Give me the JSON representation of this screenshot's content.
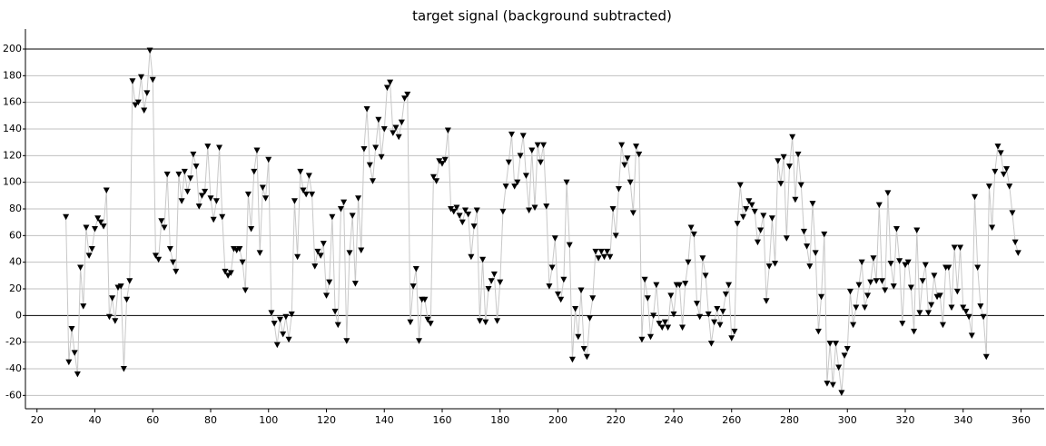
{
  "chart_data": {
    "type": "line",
    "title": "target signal (background subtracted)",
    "x": [
      30,
      31,
      32,
      33,
      34,
      35,
      36,
      37,
      38,
      39,
      40,
      41,
      42,
      43,
      44,
      45,
      46,
      47,
      48,
      49,
      50,
      51,
      52,
      53,
      54,
      55,
      56,
      57,
      58,
      59,
      60,
      61,
      62,
      63,
      64,
      65,
      66,
      67,
      68,
      69,
      70,
      71,
      72,
      73,
      74,
      75,
      76,
      77,
      78,
      79,
      80,
      81,
      82,
      83,
      84,
      85,
      86,
      87,
      88,
      89,
      90,
      91,
      92,
      93,
      94,
      95,
      96,
      97,
      98,
      99,
      100,
      101,
      102,
      103,
      104,
      105,
      106,
      107,
      108,
      109,
      110,
      111,
      112,
      113,
      114,
      115,
      116,
      117,
      118,
      119,
      120,
      121,
      122,
      123,
      124,
      125,
      126,
      127,
      128,
      129,
      130,
      131,
      132,
      133,
      134,
      135,
      136,
      137,
      138,
      139,
      140,
      141,
      142,
      143,
      144,
      145,
      146,
      147,
      148,
      149,
      150,
      151,
      152,
      153,
      154,
      155,
      156,
      157,
      158,
      159,
      160,
      161,
      162,
      163,
      164,
      165,
      166,
      167,
      168,
      169,
      170,
      171,
      172,
      173,
      174,
      175,
      176,
      177,
      178,
      179,
      180,
      181,
      182,
      183,
      184,
      185,
      186,
      187,
      188,
      189,
      190,
      191,
      192,
      193,
      194,
      195,
      196,
      197,
      198,
      199,
      200,
      201,
      202,
      203,
      204,
      205,
      206,
      207,
      208,
      209,
      210,
      211,
      212,
      213,
      214,
      215,
      216,
      217,
      218,
      219,
      220,
      221,
      222,
      223,
      224,
      225,
      226,
      227,
      228,
      229,
      230,
      231,
      232,
      233,
      234,
      235,
      236,
      237,
      238,
      239,
      240,
      241,
      242,
      243,
      244,
      245,
      246,
      247,
      248,
      249,
      250,
      251,
      252,
      253,
      254,
      255,
      256,
      257,
      258,
      259,
      260,
      261,
      262,
      263,
      264,
      265,
      266,
      267,
      268,
      269,
      270,
      271,
      272,
      273,
      274,
      275,
      276,
      277,
      278,
      279,
      280,
      281,
      282,
      283,
      284,
      285,
      286,
      287,
      288,
      289,
      290,
      291,
      292,
      293,
      294,
      295,
      296,
      297,
      298,
      299,
      300,
      301,
      302,
      303,
      304,
      305,
      306,
      307,
      308,
      309,
      310,
      311,
      312,
      313,
      314,
      315,
      316,
      317,
      318,
      319,
      320,
      321,
      322,
      323,
      324,
      325,
      326,
      327,
      328,
      329,
      330,
      331,
      332,
      333,
      334,
      335,
      336,
      337,
      338,
      339,
      340,
      341,
      342,
      343,
      344,
      345,
      346,
      347,
      348,
      349,
      350,
      351,
      352,
      353,
      354,
      355,
      356,
      357,
      358,
      359
    ],
    "values": [
      74,
      -35,
      -10,
      -28,
      -44,
      36,
      7,
      66,
      45,
      50,
      65,
      73,
      70,
      67,
      94,
      -1,
      13,
      -4,
      21,
      22,
      -40,
      12,
      26,
      176,
      158,
      160,
      179,
      154,
      167,
      199,
      177,
      45,
      42,
      71,
      66,
      106,
      50,
      40,
      33,
      106,
      86,
      108,
      93,
      103,
      121,
      112,
      82,
      90,
      93,
      127,
      88,
      72,
      86,
      126,
      74,
      33,
      30,
      32,
      50,
      49,
      50,
      40,
      19,
      91,
      65,
      108,
      124,
      47,
      96,
      88,
      117,
      2,
      -6,
      -22,
      -3,
      -14,
      -1,
      -18,
      1,
      86,
      44,
      108,
      94,
      91,
      105,
      91,
      37,
      48,
      45,
      54,
      15,
      25,
      74,
      3,
      -7,
      80,
      85,
      -19,
      47,
      75,
      24,
      88,
      49,
      125,
      155,
      113,
      101,
      126,
      147,
      119,
      140,
      171,
      175,
      137,
      141,
      134,
      145,
      163,
      166,
      -5,
      22,
      35,
      -19,
      12,
      12,
      -3,
      -6,
      104,
      101,
      116,
      114,
      117,
      139,
      80,
      78,
      81,
      75,
      70,
      79,
      76,
      44,
      67,
      79,
      -4,
      42,
      -5,
      20,
      26,
      31,
      -4,
      25,
      78,
      97,
      115,
      136,
      97,
      100,
      120,
      135,
      105,
      79,
      124,
      81,
      128,
      115,
      128,
      82,
      22,
      36,
      58,
      16,
      12,
      27,
      100,
      53,
      -33,
      5,
      -16,
      19,
      -25,
      -31,
      -2,
      13,
      48,
      43,
      48,
      44,
      48,
      44,
      80,
      60,
      95,
      128,
      113,
      118,
      100,
      77,
      127,
      121,
      -18,
      27,
      13,
      -16,
      0,
      23,
      -6,
      -9,
      -5,
      -9,
      15,
      1,
      23,
      23,
      -9,
      24,
      40,
      66,
      61,
      9,
      -1,
      43,
      30,
      1,
      -21,
      -5,
      5,
      -7,
      3,
      16,
      23,
      -17,
      -12,
      69,
      98,
      74,
      80,
      86,
      83,
      78,
      55,
      64,
      75,
      11,
      37,
      73,
      39,
      116,
      99,
      119,
      58,
      112,
      134,
      87,
      121,
      98,
      63,
      52,
      37,
      84,
      47,
      -12,
      14,
      61,
      -51,
      -21,
      -52,
      -21,
      -39,
      -58,
      -30,
      -25,
      18,
      -7,
      6,
      23,
      40,
      6,
      15,
      25,
      43,
      26,
      83,
      26,
      19,
      92,
      39,
      22,
      65,
      41,
      -6,
      38,
      40,
      21,
      -12,
      64,
      2,
      26,
      38,
      2,
      8,
      30,
      14,
      15,
      -7,
      36,
      36,
      6,
      51,
      18,
      51,
      6,
      3,
      -1,
      -15,
      89,
      36,
      7,
      -1,
      -31,
      97,
      66,
      108,
      127,
      122,
      106,
      110,
      97,
      77,
      55,
      47
    ],
    "line_color": "#c8c8c8",
    "marker_color": "#000000",
    "marker": "triangle-down",
    "xlim": [
      16,
      368
    ],
    "ylim": [
      -70,
      215
    ],
    "xticks": [
      20,
      40,
      60,
      80,
      100,
      120,
      140,
      160,
      180,
      200,
      220,
      240,
      260,
      280,
      300,
      320,
      340,
      360
    ],
    "yticks": [
      -60,
      -40,
      -20,
      0,
      20,
      40,
      60,
      80,
      100,
      120,
      140,
      160,
      180,
      200
    ],
    "grid": true,
    "reference_lines": [
      0,
      200
    ]
  }
}
